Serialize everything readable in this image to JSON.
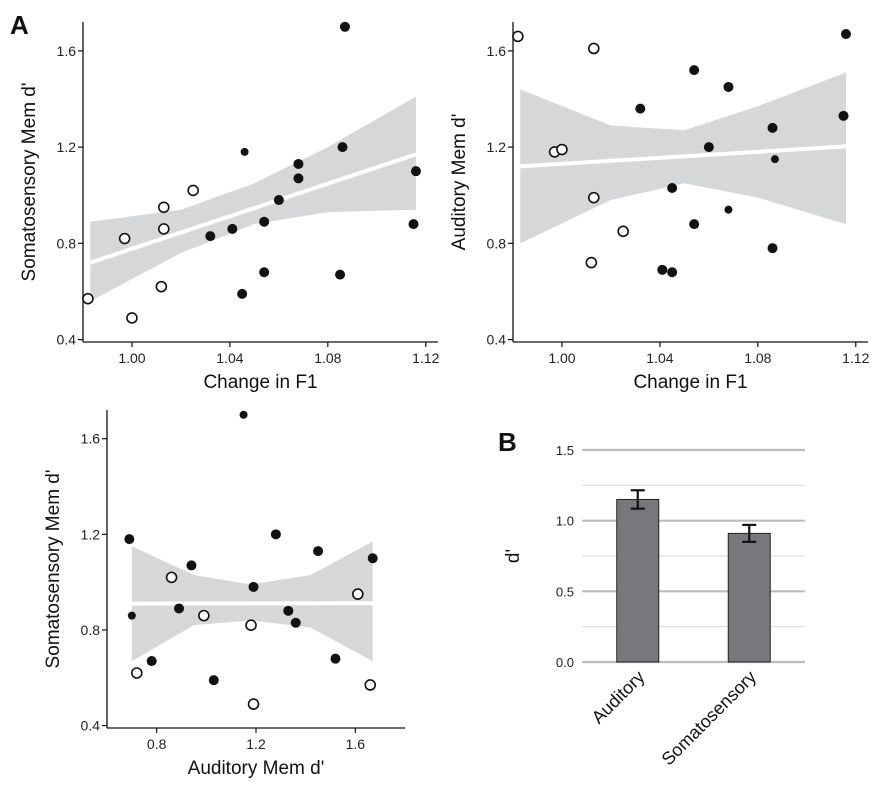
{
  "panel_labels": {
    "a": "A",
    "b": "B"
  },
  "chart_data": [
    {
      "type": "scatter",
      "id": "scatter-soma-vs-f1",
      "xlabel": "Change in F1",
      "ylabel": "Somatosensory Mem d'",
      "xlim": [
        0.98,
        1.125
      ],
      "ylim": [
        0.39,
        1.72
      ],
      "xticks": [
        1.0,
        1.04,
        1.08,
        1.12
      ],
      "xtick_labels": [
        "1.00",
        "1.04",
        "1.08",
        "1.12"
      ],
      "yticks": [
        0.4,
        0.8,
        1.2,
        1.6
      ],
      "ytick_labels": [
        "0.4",
        "0.8",
        "1.2",
        "1.6"
      ],
      "fit_line": {
        "x": [
          0.983,
          1.116
        ],
        "y": [
          0.72,
          1.17
        ]
      },
      "confidence_band": {
        "x": [
          0.983,
          1.02,
          1.05,
          1.08,
          1.116
        ],
        "lower": [
          0.56,
          0.76,
          0.88,
          0.93,
          0.94
        ],
        "upper": [
          0.89,
          0.94,
          1.05,
          1.2,
          1.41
        ]
      },
      "series": [
        {
          "name": "",
          "marker": "open",
          "size": "large",
          "x": [
            0.982,
            0.997,
            1.0,
            1.012,
            1.013,
            1.013,
            1.025
          ],
          "y": [
            0.57,
            0.82,
            0.49,
            0.62,
            0.95,
            0.86,
            1.02
          ]
        },
        {
          "name": "",
          "marker": "filled",
          "size": "large",
          "x": [
            1.032,
            1.041,
            1.045,
            1.054,
            1.054,
            1.06,
            1.068,
            1.068,
            1.085,
            1.086,
            1.087,
            1.115,
            1.116
          ],
          "y": [
            0.83,
            0.86,
            0.59,
            0.68,
            0.89,
            0.98,
            1.07,
            1.13,
            0.67,
            1.2,
            1.7,
            0.88,
            1.1
          ]
        },
        {
          "name": "",
          "marker": "filled",
          "size": "small",
          "x": [
            1.046
          ],
          "y": [
            1.18
          ]
        }
      ]
    },
    {
      "type": "scatter",
      "id": "scatter-aud-vs-f1",
      "xlabel": "Change in F1",
      "ylabel": "Auditory Mem d'",
      "xlim": [
        0.98,
        1.125
      ],
      "ylim": [
        0.39,
        1.72
      ],
      "xticks": [
        1.0,
        1.04,
        1.08,
        1.12
      ],
      "xtick_labels": [
        "1.00",
        "1.04",
        "1.08",
        "1.12"
      ],
      "yticks": [
        0.4,
        0.8,
        1.2,
        1.6
      ],
      "ytick_labels": [
        "0.4",
        "0.8",
        "1.2",
        "1.6"
      ],
      "fit_line": {
        "x": [
          0.983,
          1.116
        ],
        "y": [
          1.12,
          1.203
        ]
      },
      "confidence_band": {
        "x": [
          0.983,
          1.02,
          1.05,
          1.08,
          1.116
        ],
        "lower": [
          0.8,
          0.98,
          1.05,
          0.99,
          0.88
        ],
        "upper": [
          1.44,
          1.29,
          1.27,
          1.37,
          1.51
        ]
      },
      "series": [
        {
          "name": "",
          "marker": "open",
          "size": "large",
          "x": [
            0.982,
            0.997,
            1.0,
            1.012,
            1.013,
            1.013,
            1.025
          ],
          "y": [
            1.66,
            1.18,
            1.19,
            0.72,
            0.99,
            1.61,
            0.85
          ]
        },
        {
          "name": "",
          "marker": "filled",
          "size": "large",
          "x": [
            1.032,
            1.041,
            1.045,
            1.045,
            1.054,
            1.054,
            1.06,
            1.068,
            1.086,
            1.086,
            1.115,
            1.116
          ],
          "y": [
            1.36,
            0.69,
            0.68,
            1.03,
            0.88,
            1.52,
            1.2,
            1.45,
            1.28,
            0.78,
            1.33,
            1.67
          ]
        },
        {
          "name": "",
          "marker": "filled",
          "size": "small",
          "x": [
            1.068,
            1.087
          ],
          "y": [
            0.94,
            1.15
          ]
        }
      ]
    },
    {
      "type": "scatter",
      "id": "scatter-soma-vs-aud",
      "xlabel": "Auditory Mem d'",
      "ylabel": "Somatosensory Mem d'",
      "xlim": [
        0.6,
        1.8
      ],
      "ylim": [
        0.39,
        1.72
      ],
      "xticks": [
        0.8,
        1.2,
        1.6
      ],
      "xtick_labels": [
        "0.8",
        "1.2",
        "1.6"
      ],
      "yticks": [
        0.4,
        0.8,
        1.2,
        1.6
      ],
      "ytick_labels": [
        "0.4",
        "0.8",
        "1.2",
        "1.6"
      ],
      "fit_line": {
        "x": [
          0.7,
          1.67
        ],
        "y": [
          0.91,
          0.912
        ]
      },
      "confidence_band": {
        "x": [
          0.7,
          0.95,
          1.18,
          1.42,
          1.67
        ],
        "lower": [
          0.67,
          0.82,
          0.84,
          0.81,
          0.67
        ],
        "upper": [
          1.15,
          1.03,
          0.99,
          1.03,
          1.17
        ]
      },
      "series": [
        {
          "name": "",
          "marker": "open",
          "size": "large",
          "x": [
            0.72,
            0.86,
            0.99,
            1.18,
            1.19,
            1.61,
            1.66
          ],
          "y": [
            0.62,
            1.02,
            0.86,
            0.82,
            0.49,
            0.95,
            0.57
          ]
        },
        {
          "name": "",
          "marker": "filled",
          "size": "large",
          "x": [
            0.69,
            0.78,
            0.89,
            0.94,
            1.03,
            1.19,
            1.28,
            1.33,
            1.36,
            1.45,
            1.52,
            1.67
          ],
          "y": [
            1.18,
            0.67,
            0.89,
            1.07,
            0.59,
            0.98,
            1.2,
            0.88,
            0.83,
            1.13,
            0.68,
            1.1
          ]
        },
        {
          "name": "",
          "marker": "filled",
          "size": "small",
          "x": [
            0.7,
            1.15
          ],
          "y": [
            0.86,
            1.7
          ]
        }
      ]
    },
    {
      "type": "bar",
      "id": "bar-dprime",
      "categories": [
        "Auditory",
        "Somatosensory"
      ],
      "values": [
        1.15,
        0.91
      ],
      "errors": [
        0.065,
        0.06
      ],
      "ylabel": "d'",
      "ylim": [
        0,
        1.5
      ],
      "yticks": [
        0.0,
        0.5,
        1.0,
        1.5
      ],
      "ytick_labels": [
        "0.0",
        "0.5",
        "1.0",
        "1.5"
      ],
      "minor_grid": [
        0.25,
        0.75,
        1.25
      ],
      "grid": true,
      "bar_color": "#78787c"
    }
  ]
}
